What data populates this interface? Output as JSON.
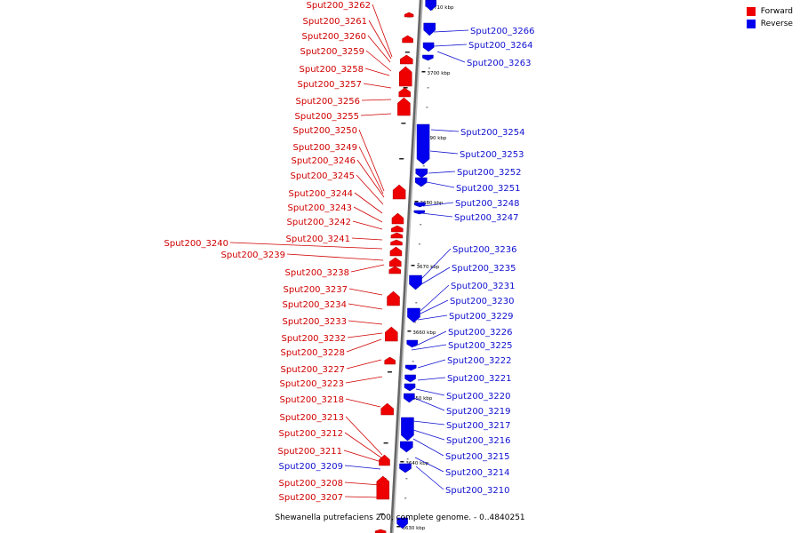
{
  "legend": {
    "forward": {
      "label": "Forward",
      "color": "#ee0000"
    },
    "reverse": {
      "label": "Reverse",
      "color": "#0000ee"
    }
  },
  "caption": "Shewanella putrefaciens 200, complete genome. - 0..4840251",
  "kbp_ticks": [
    "3710 kbp",
    "3700 kbp",
    "3690 kbp",
    "3680 kbp",
    "3670 kbp",
    "3660 kbp",
    "3650 kbp",
    "3640 kbp",
    "3630 kbp"
  ],
  "left_labels": [
    {
      "text": "Sput200_3262",
      "color": "#d00000"
    },
    {
      "text": "Sput200_3261",
      "color": "#d00000"
    },
    {
      "text": "Sput200_3260",
      "color": "#d00000"
    },
    {
      "text": "Sput200_3259",
      "color": "#d00000"
    },
    {
      "text": "Sput200_3258",
      "color": "#d00000"
    },
    {
      "text": "Sput200_3257",
      "color": "#d00000"
    },
    {
      "text": "Sput200_3256",
      "color": "#d00000"
    },
    {
      "text": "Sput200_3255",
      "color": "#d00000"
    },
    {
      "text": "Sput200_3250",
      "color": "#d00000"
    },
    {
      "text": "Sput200_3249",
      "color": "#d00000"
    },
    {
      "text": "Sput200_3246",
      "color": "#d00000"
    },
    {
      "text": "Sput200_3245",
      "color": "#d00000"
    },
    {
      "text": "Sput200_3244",
      "color": "#d00000"
    },
    {
      "text": "Sput200_3243",
      "color": "#d00000"
    },
    {
      "text": "Sput200_3242",
      "color": "#d00000"
    },
    {
      "text": "Sput200_3241",
      "color": "#d00000"
    },
    {
      "text": "Sput200_3240",
      "color": "#d00000"
    },
    {
      "text": "Sput200_3239",
      "color": "#d00000"
    },
    {
      "text": "Sput200_3238",
      "color": "#d00000"
    },
    {
      "text": "Sput200_3237",
      "color": "#d00000"
    },
    {
      "text": "Sput200_3234",
      "color": "#d00000"
    },
    {
      "text": "Sput200_3233",
      "color": "#d00000"
    },
    {
      "text": "Sput200_3232",
      "color": "#d00000"
    },
    {
      "text": "Sput200_3228",
      "color": "#d00000"
    },
    {
      "text": "Sput200_3227",
      "color": "#d00000"
    },
    {
      "text": "Sput200_3223",
      "color": "#d00000"
    },
    {
      "text": "Sput200_3218",
      "color": "#d00000"
    },
    {
      "text": "Sput200_3213",
      "color": "#d00000"
    },
    {
      "text": "Sput200_3212",
      "color": "#d00000"
    },
    {
      "text": "Sput200_3211",
      "color": "#d00000"
    },
    {
      "text": "Sput200_3209",
      "color": "#1010d0"
    },
    {
      "text": "Sput200_3208",
      "color": "#d00000"
    },
    {
      "text": "Sput200_3207",
      "color": "#d00000"
    }
  ],
  "right_labels": [
    {
      "text": "Sput200_3266"
    },
    {
      "text": "Sput200_3264"
    },
    {
      "text": "Sput200_3263"
    },
    {
      "text": "Sput200_3254"
    },
    {
      "text": "Sput200_3253"
    },
    {
      "text": "Sput200_3252"
    },
    {
      "text": "Sput200_3251"
    },
    {
      "text": "Sput200_3248"
    },
    {
      "text": "Sput200_3247"
    },
    {
      "text": "Sput200_3236"
    },
    {
      "text": "Sput200_3235"
    },
    {
      "text": "Sput200_3231"
    },
    {
      "text": "Sput200_3230"
    },
    {
      "text": "Sput200_3229"
    },
    {
      "text": "Sput200_3226"
    },
    {
      "text": "Sput200_3225"
    },
    {
      "text": "Sput200_3222"
    },
    {
      "text": "Sput200_3221"
    },
    {
      "text": "Sput200_3220"
    },
    {
      "text": "Sput200_3219"
    },
    {
      "text": "Sput200_3217"
    },
    {
      "text": "Sput200_3216"
    },
    {
      "text": "Sput200_3215"
    },
    {
      "text": "Sput200_3214"
    },
    {
      "text": "Sput200_3210"
    }
  ]
}
